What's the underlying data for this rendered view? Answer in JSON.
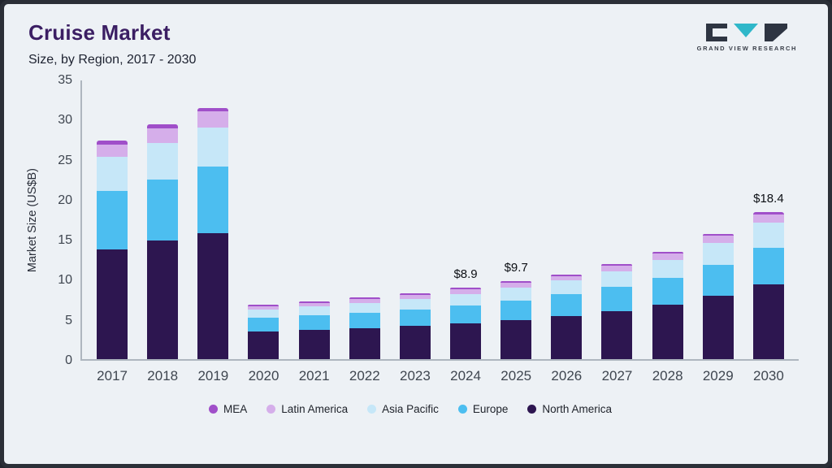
{
  "header": {
    "title": "Cruise Market",
    "subtitle": "Size, by Region, 2017 - 2030",
    "logo_text": "GRAND VIEW RESEARCH"
  },
  "chart_data": {
    "type": "bar",
    "stacked": true,
    "title": "Cruise Market",
    "subtitle": "Size, by Region, 2017 - 2030",
    "xlabel": "",
    "ylabel": "Market Size (US$B)",
    "ylim": [
      0,
      35
    ],
    "yticks": [
      0,
      5,
      10,
      15,
      20,
      25,
      30,
      35
    ],
    "grid": false,
    "legend_position": "bottom",
    "categories": [
      "2017",
      "2018",
      "2019",
      "2020",
      "2021",
      "2022",
      "2023",
      "2024",
      "2025",
      "2026",
      "2027",
      "2028",
      "2029",
      "2030"
    ],
    "series": [
      {
        "name": "North America",
        "color": "#2d1650",
        "values": [
          13.7,
          14.8,
          15.7,
          3.5,
          3.7,
          3.9,
          4.2,
          4.5,
          4.9,
          5.4,
          6.0,
          6.8,
          7.9,
          9.3
        ]
      },
      {
        "name": "Europe",
        "color": "#4cbef0",
        "values": [
          7.3,
          7.6,
          8.3,
          1.7,
          1.8,
          1.9,
          2.0,
          2.2,
          2.4,
          2.7,
          3.0,
          3.4,
          3.9,
          4.6
        ]
      },
      {
        "name": "Asia Pacific",
        "color": "#c6e7f8",
        "values": [
          4.3,
          4.6,
          4.9,
          1.0,
          1.1,
          1.2,
          1.3,
          1.4,
          1.6,
          1.7,
          2.0,
          2.2,
          2.7,
          3.2
        ]
      },
      {
        "name": "Latin America",
        "color": "#d5aeea",
        "values": [
          1.5,
          1.8,
          2.0,
          0.4,
          0.4,
          0.5,
          0.5,
          0.6,
          0.6,
          0.6,
          0.7,
          0.8,
          0.9,
          1.0
        ]
      },
      {
        "name": "MEA",
        "color": "#a04fc9",
        "values": [
          0.5,
          0.5,
          0.5,
          0.2,
          0.2,
          0.2,
          0.2,
          0.2,
          0.2,
          0.2,
          0.2,
          0.2,
          0.2,
          0.3
        ]
      }
    ],
    "stack_order": "bottom-to-top",
    "legend": [
      "MEA",
      "Latin America",
      "Asia Pacific",
      "Europe",
      "North America"
    ],
    "annotations": [
      {
        "category": "2024",
        "label": "$8.9"
      },
      {
        "category": "2025",
        "label": "$9.7"
      },
      {
        "category": "2030",
        "label": "$18.4"
      }
    ]
  }
}
